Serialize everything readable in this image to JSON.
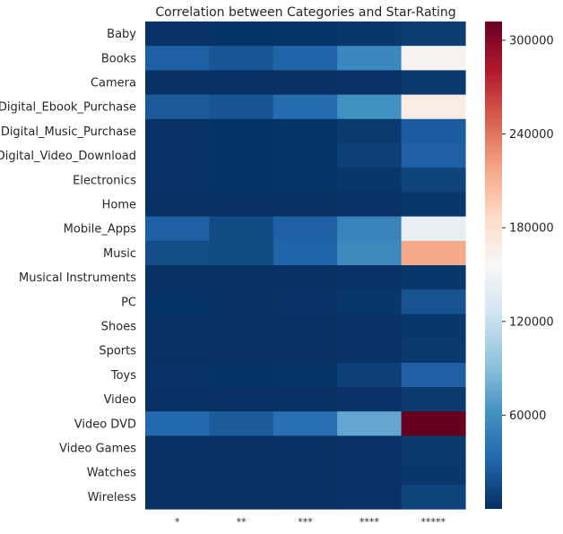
{
  "chart_data": {
    "type": "heatmap",
    "title": "Correlation between Categories and Star-Rating",
    "xlabel": "",
    "ylabel": "",
    "columns": [
      "*",
      "**",
      "***",
      "****",
      "*****"
    ],
    "rows": [
      "Baby",
      "Books",
      "Camera",
      "Digital_Ebook_Purchase",
      "Digital_Music_Purchase",
      "Digital_Video_Download",
      "Electronics",
      "Home",
      "Mobile_Apps",
      "Music",
      "Musical Instruments",
      "PC",
      "Shoes",
      "Sports",
      "Toys",
      "Video",
      "Video DVD",
      "Video Games",
      "Watches",
      "Wireless"
    ],
    "values": [
      [
        2000,
        1500,
        2500,
        4000,
        8000
      ],
      [
        28000,
        22000,
        30000,
        55000,
        160000
      ],
      [
        1000,
        800,
        1200,
        2000,
        5000
      ],
      [
        24000,
        21000,
        36000,
        60000,
        168000
      ],
      [
        2000,
        1500,
        2500,
        6000,
        26000
      ],
      [
        2000,
        1500,
        3000,
        9000,
        28000
      ],
      [
        2000,
        1500,
        2500,
        4000,
        11000
      ],
      [
        1000,
        800,
        1200,
        2000,
        4000
      ],
      [
        28000,
        15000,
        28000,
        52000,
        143000
      ],
      [
        16000,
        15000,
        30000,
        56000,
        216000
      ],
      [
        1000,
        800,
        1200,
        2000,
        4000
      ],
      [
        1500,
        1200,
        2000,
        4000,
        20000
      ],
      [
        1000,
        800,
        1200,
        2000,
        4000
      ],
      [
        1000,
        800,
        1200,
        2000,
        5000
      ],
      [
        2000,
        1500,
        2500,
        9000,
        28000
      ],
      [
        1000,
        800,
        1200,
        2000,
        6000
      ],
      [
        33000,
        24000,
        38000,
        75000,
        312000
      ],
      [
        1000,
        800,
        1200,
        2000,
        5000
      ],
      [
        1000,
        800,
        1200,
        2000,
        4000
      ],
      [
        1000,
        800,
        1200,
        2000,
        11000
      ]
    ],
    "colorbar": {
      "min": 0,
      "max": 312000,
      "ticks": [
        60000,
        120000,
        180000,
        240000,
        300000
      ],
      "tick_labels": [
        "60000",
        "120000",
        "180000",
        "240000",
        "300000"
      ],
      "colormap": "RdBu_r"
    },
    "grid": false,
    "legend": "colorbar right"
  }
}
